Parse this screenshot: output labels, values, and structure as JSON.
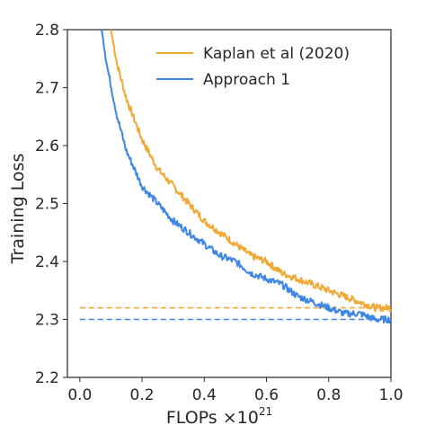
{
  "chart_data": {
    "type": "line",
    "xlabel": "FLOPs ×10",
    "xlabel_exponent": "21",
    "ylabel": "Training Loss",
    "xlim": [
      -0.04,
      1.0
    ],
    "ylim": [
      2.2,
      2.8
    ],
    "xticks": [
      0.0,
      0.2,
      0.4,
      0.6,
      0.8,
      1.0
    ],
    "xtick_labels": [
      "0.0",
      "0.2",
      "0.4",
      "0.6",
      "0.8",
      "1.0"
    ],
    "yticks": [
      2.2,
      2.3,
      2.4,
      2.5,
      2.6,
      2.7,
      2.8
    ],
    "ytick_labels": [
      "2.2",
      "2.3",
      "2.4",
      "2.5",
      "2.6",
      "2.7",
      "2.8"
    ],
    "grid": false,
    "legend_position": "top-right",
    "series": [
      {
        "name": "Kaplan et al (2020)",
        "color": "#f2a731",
        "asymptote": 2.32,
        "x": [
          0.1,
          0.12,
          0.15,
          0.2,
          0.25,
          0.3,
          0.35,
          0.4,
          0.45,
          0.5,
          0.55,
          0.6,
          0.65,
          0.7,
          0.75,
          0.8,
          0.85,
          0.9,
          0.95,
          1.0
        ],
        "y": [
          2.8,
          2.74,
          2.68,
          2.61,
          2.56,
          2.53,
          2.5,
          2.47,
          2.45,
          2.43,
          2.41,
          2.4,
          2.38,
          2.37,
          2.36,
          2.35,
          2.34,
          2.33,
          2.32,
          2.32
        ]
      },
      {
        "name": "Approach 1",
        "color": "#3d86e4",
        "asymptote": 2.3,
        "x": [
          0.07,
          0.09,
          0.12,
          0.15,
          0.2,
          0.25,
          0.3,
          0.35,
          0.4,
          0.45,
          0.5,
          0.55,
          0.6,
          0.65,
          0.7,
          0.75,
          0.8,
          0.85,
          0.9,
          0.95,
          1.0
        ],
        "y": [
          2.8,
          2.73,
          2.65,
          2.59,
          2.53,
          2.5,
          2.47,
          2.45,
          2.43,
          2.41,
          2.4,
          2.38,
          2.37,
          2.36,
          2.34,
          2.33,
          2.32,
          2.31,
          2.31,
          2.3,
          2.3
        ]
      }
    ]
  }
}
